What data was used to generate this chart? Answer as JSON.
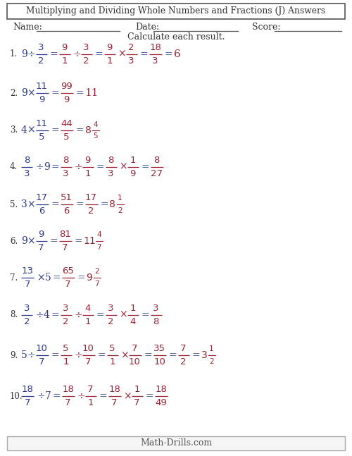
{
  "title": "Multiplying and Dividing Whole Numbers and Fractions (J) Answers",
  "subtitle": "Calculate each result.",
  "bg_color": "#ffffff",
  "dark_color": "#2b3990",
  "red_color": "#9b2335",
  "footer": "Math-Drills.com",
  "problems": [
    {
      "num": "1.",
      "question": {
        "whole": "9",
        "op": "÷",
        "fnum": "3",
        "fden": "2"
      },
      "steps": [
        {
          "type": "frac",
          "num": "9",
          "den": "1",
          "color": "red"
        },
        {
          "type": "op",
          "text": "÷",
          "color": "red"
        },
        {
          "type": "frac",
          "num": "3",
          "den": "2",
          "color": "red"
        },
        {
          "type": "op",
          "text": "×",
          "via_eq": true,
          "color": "red"
        },
        {
          "type": "frac",
          "num": "9",
          "den": "1",
          "color": "red"
        },
        {
          "type": "op_inline",
          "text": "×",
          "color": "red"
        },
        {
          "type": "frac",
          "num": "2",
          "den": "3",
          "color": "red"
        },
        {
          "type": "frac_result",
          "num": "18",
          "den": "3",
          "color": "red"
        },
        {
          "type": "whole_result",
          "text": "6",
          "color": "red"
        }
      ]
    }
  ]
}
